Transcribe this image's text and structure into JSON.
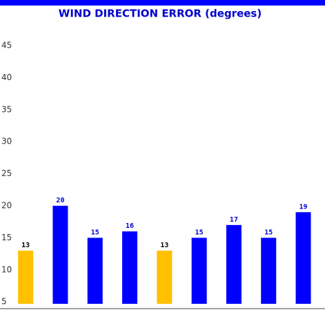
{
  "chart_data": {
    "type": "bar",
    "title": "WIND DIRECTION ERROR (degrees)",
    "categories": [
      null,
      null,
      null,
      null,
      null,
      null,
      null,
      null,
      null
    ],
    "values": [
      13,
      20,
      15,
      16,
      13,
      15,
      17,
      15,
      19
    ],
    "colors": [
      "#ffc000",
      "#0000ff",
      "#0000ff",
      "#0000ff",
      "#ffc000",
      "#0000ff",
      "#0000ff",
      "#0000ff",
      "#0000ff"
    ],
    "label_colors": [
      "#000000",
      "#0000cc",
      "#0000cc",
      "#0000cc",
      "#000000",
      "#0000cc",
      "#0000cc",
      "#0000cc",
      "#0000cc"
    ],
    "ylim": [
      4.7,
      50
    ],
    "yticks": [
      5,
      10,
      15,
      20,
      25,
      30,
      35,
      40,
      45
    ],
    "grid": false
  }
}
